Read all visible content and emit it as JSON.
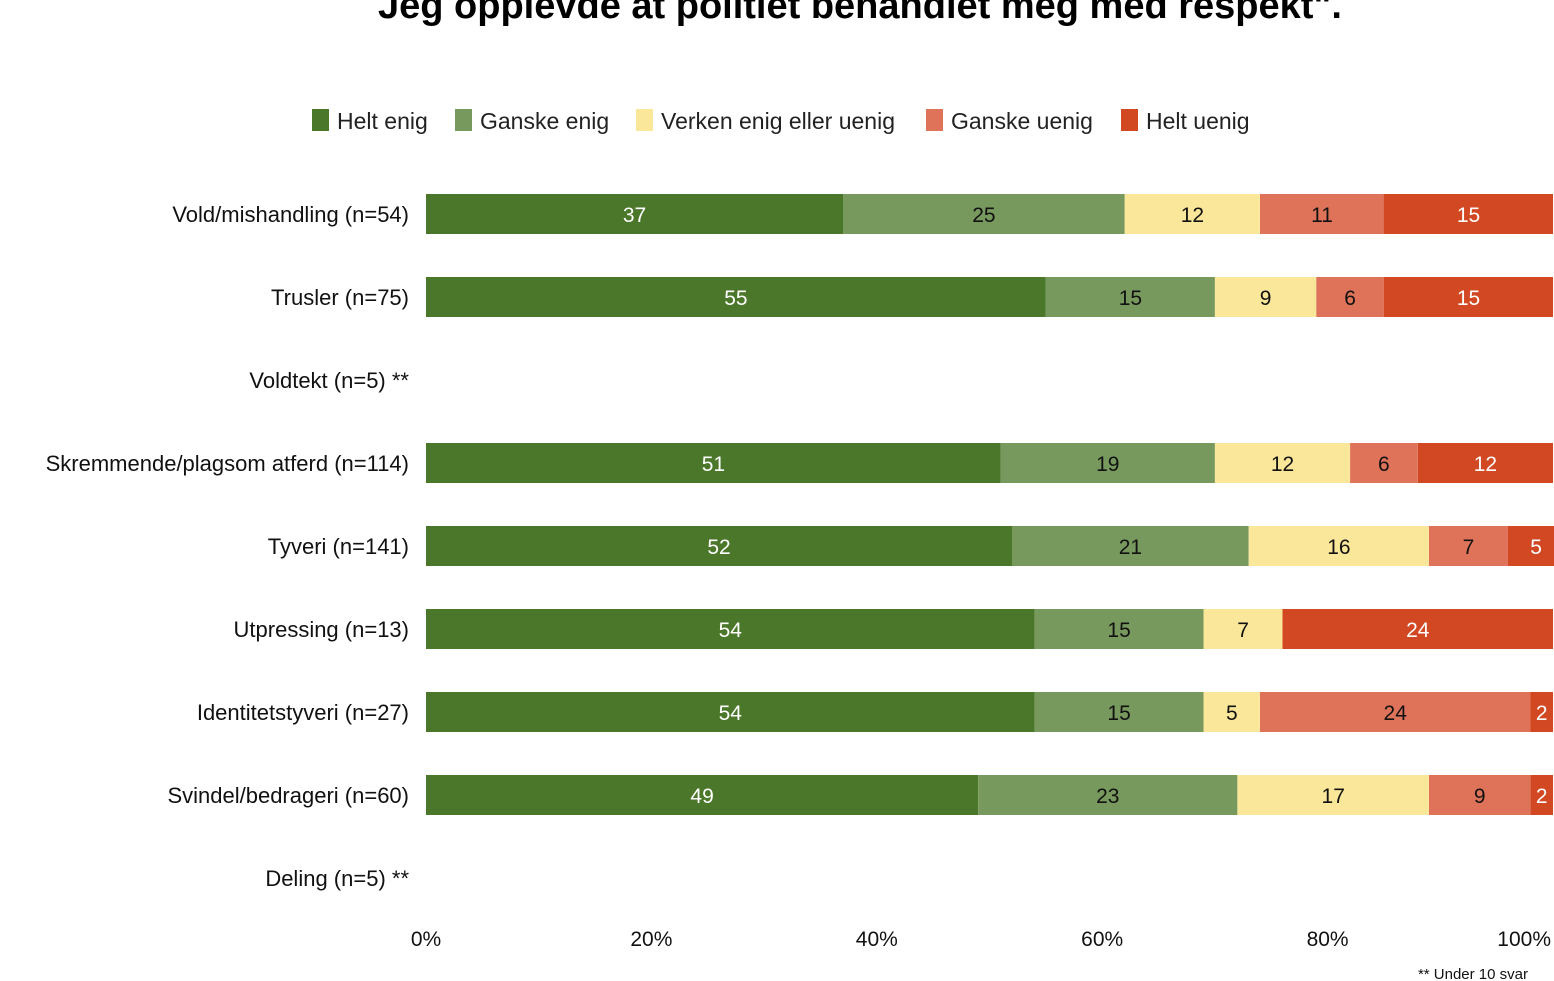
{
  "chart_data": {
    "type": "bar",
    "orientation": "horizontal",
    "stacked": true,
    "title": "Jeg opplevde at politiet behandlet meg med respekt\".",
    "footnote": "** Under 10 svar",
    "categories": [
      "Vold/mishandling (n=54)",
      "Trusler (n=75)",
      "Voldtekt (n=5) **",
      "Skremmende/plagsom atferd (n=114)",
      "Tyveri (n=141)",
      "Utpressing (n=13)",
      "Identitetstyveri (n=27)",
      "Svindel/bedrageri (n=60)",
      "Deling (n=5) **"
    ],
    "series": [
      {
        "name": "Helt enig",
        "color": "#4a7729",
        "label_color": "#ffffff",
        "values": [
          37,
          55,
          null,
          51,
          52,
          54,
          54,
          49,
          null
        ]
      },
      {
        "name": "Ganske enig",
        "color": "#77995e",
        "label_color": "#111111",
        "values": [
          25,
          15,
          null,
          19,
          21,
          15,
          15,
          23,
          null
        ]
      },
      {
        "name": "Verken enig eller uenig",
        "color": "#fae79a",
        "label_color": "#111111",
        "values": [
          12,
          9,
          null,
          12,
          16,
          7,
          5,
          17,
          null
        ]
      },
      {
        "name": "Ganske uenig",
        "color": "#df735a",
        "label_color": "#111111",
        "values": [
          11,
          6,
          null,
          6,
          7,
          0,
          24,
          9,
          null
        ]
      },
      {
        "name": "Helt uenig",
        "color": "#d14822",
        "label_color": "#ffffff",
        "values": [
          15,
          15,
          null,
          12,
          5,
          24,
          2,
          2,
          null
        ]
      }
    ],
    "x_ticks": [
      "0%",
      "20%",
      "40%",
      "60%",
      "80%",
      "100%"
    ],
    "xlim": [
      0,
      100
    ],
    "legend_position": "top",
    "grid": false
  }
}
